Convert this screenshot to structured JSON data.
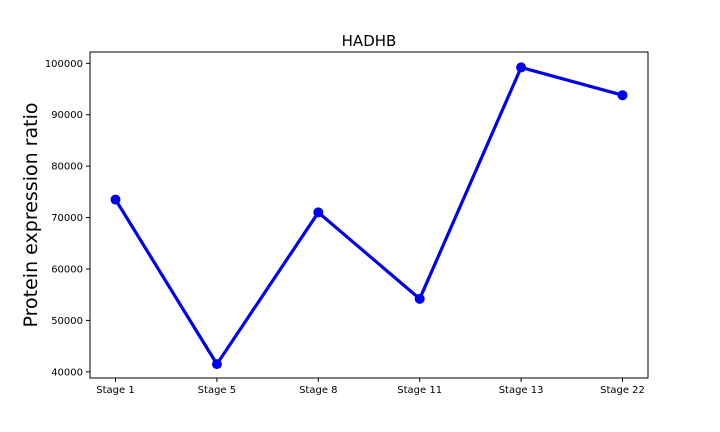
{
  "chart_data": {
    "type": "line",
    "title": "HADHB",
    "xlabel": "",
    "ylabel": "Protein expression ratio",
    "categories": [
      "Stage 1",
      "Stage 5",
      "Stage 8",
      "Stage 11",
      "Stage 13",
      "Stage 22"
    ],
    "series": [
      {
        "values": [
          73500,
          41500,
          71000,
          54200,
          99200,
          93800
        ],
        "color": "#0000ee"
      }
    ],
    "yticks": [
      40000,
      50000,
      60000,
      70000,
      80000,
      90000,
      100000
    ],
    "ylim": [
      38800,
      102200
    ],
    "grid": false,
    "legend": "none"
  }
}
